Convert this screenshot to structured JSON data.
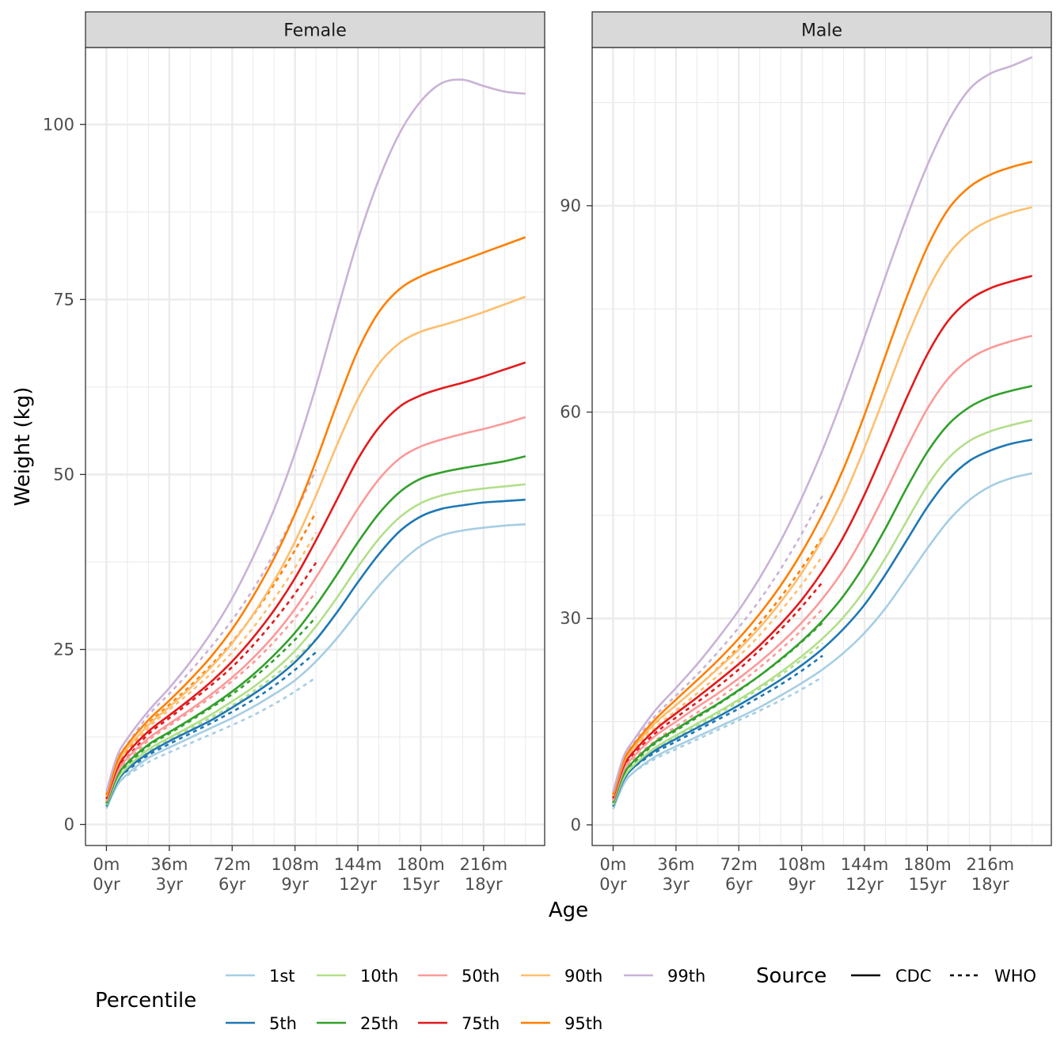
{
  "chart_data": {
    "type": "line",
    "xlabel": "Age",
    "ylabel": "Weight (kg)",
    "x_ticks": [
      {
        "months": 0,
        "l1": "0m",
        "l2": "0yr"
      },
      {
        "months": 36,
        "l1": "36m",
        "l2": "3yr"
      },
      {
        "months": 72,
        "l1": "72m",
        "l2": "6yr"
      },
      {
        "months": 108,
        "l1": "108m",
        "l2": "9yr"
      },
      {
        "months": 144,
        "l1": "144m",
        "l2": "12yr"
      },
      {
        "months": 180,
        "l1": "180m",
        "l2": "15yr"
      },
      {
        "months": 216,
        "l1": "216m",
        "l2": "18yr"
      }
    ],
    "xlim": [
      -12,
      251
    ],
    "grid": true,
    "legend": {
      "placement": "bottom",
      "percentile_title": "Percentile",
      "source_title": "Source",
      "sources": [
        {
          "label": "CDC",
          "dash": "solid"
        },
        {
          "label": "WHO",
          "dash": "dotted"
        }
      ]
    },
    "percentiles": [
      {
        "name": "1st",
        "color": "#a6cee3"
      },
      {
        "name": "5th",
        "color": "#1f78b4"
      },
      {
        "name": "10th",
        "color": "#b2df8a"
      },
      {
        "name": "25th",
        "color": "#33a02c"
      },
      {
        "name": "50th",
        "color": "#fb9a99"
      },
      {
        "name": "75th",
        "color": "#e31a1c"
      },
      {
        "name": "90th",
        "color": "#fdbf6f"
      },
      {
        "name": "95th",
        "color": "#ff7f00"
      },
      {
        "name": "99th",
        "color": "#cab2d6"
      }
    ],
    "facets": [
      {
        "title": "Female",
        "ylim": [
          -3,
          111
        ],
        "y_ticks": [
          0,
          25,
          50,
          75,
          100
        ],
        "cdc": {
          "months": [
            0,
            6,
            12,
            24,
            36,
            48,
            60,
            72,
            84,
            96,
            108,
            120,
            132,
            144,
            156,
            168,
            180,
            192,
            204,
            216,
            228,
            240
          ],
          "series": {
            "1st": [
              2.3,
              5.5,
              7.2,
              9.5,
              11.0,
              12.4,
              13.8,
              15.2,
              16.8,
              18.6,
              20.6,
              23.3,
              26.6,
              30.4,
              34.1,
              37.3,
              39.8,
              41.3,
              42.0,
              42.4,
              42.7,
              42.9
            ],
            "5th": [
              2.6,
              6.0,
              7.9,
              10.2,
              11.9,
              13.4,
              14.9,
              16.7,
              18.6,
              20.7,
              23.2,
              26.4,
              30.3,
              34.6,
              38.6,
              41.9,
              44.0,
              45.1,
              45.6,
              46.0,
              46.2,
              46.4
            ],
            "10th": [
              2.8,
              6.3,
              8.2,
              10.7,
              12.4,
              14.0,
              15.7,
              17.6,
              19.6,
              22.0,
              24.8,
              28.3,
              32.4,
              36.8,
              40.8,
              43.9,
              45.9,
              47.0,
              47.6,
              48.0,
              48.3,
              48.6
            ],
            "25th": [
              3.0,
              6.8,
              8.8,
              11.4,
              13.2,
              15.0,
              16.9,
              19.0,
              21.4,
              24.2,
              27.4,
              31.3,
              35.7,
              40.3,
              44.4,
              47.5,
              49.4,
              50.3,
              50.9,
              51.4,
              51.9,
              52.6
            ],
            "50th": [
              3.3,
              7.3,
              9.5,
              12.3,
              14.4,
              16.4,
              18.6,
              21.0,
              23.8,
              27.0,
              30.8,
              35.3,
              40.2,
              45.1,
              49.3,
              52.3,
              54.0,
              55.0,
              55.8,
              56.5,
              57.3,
              58.2
            ],
            "75th": [
              3.7,
              7.9,
              10.2,
              13.3,
              15.6,
              17.9,
              20.4,
              23.3,
              26.7,
              30.6,
              35.2,
              40.6,
              46.4,
              52.2,
              56.7,
              59.7,
              61.3,
              62.3,
              63.1,
              64.0,
              65.0,
              66.0
            ],
            "90th": [
              4.0,
              8.5,
              10.9,
              14.2,
              16.8,
              19.5,
              22.5,
              25.9,
              30.0,
              34.8,
              40.4,
              47.0,
              54.2,
              60.8,
              65.8,
              68.8,
              70.4,
              71.3,
              72.2,
              73.2,
              74.3,
              75.4
            ],
            "95th": [
              4.2,
              8.9,
              11.4,
              14.9,
              17.7,
              20.7,
              24.0,
              27.9,
              32.6,
              38.0,
              44.4,
              51.9,
              60.1,
              67.7,
              73.2,
              76.5,
              78.3,
              79.5,
              80.6,
              81.7,
              82.8,
              83.9
            ],
            "99th": [
              4.7,
              9.7,
              12.3,
              16.2,
              19.5,
              23.2,
              27.4,
              32.3,
              38.2,
              45.0,
              53.1,
              62.6,
              73.2,
              83.5,
              92.1,
              98.8,
              103.3,
              105.9,
              106.4,
              105.5,
              104.7,
              104.4
            ]
          }
        },
        "who": {
          "months": [
            0,
            6,
            12,
            24,
            36,
            48,
            60,
            72,
            84,
            96,
            108,
            120
          ],
          "series": {
            "1st": [
              2.3,
              5.6,
              7.0,
              8.9,
              10.3,
              11.6,
              12.9,
              14.2,
              15.6,
              17.2,
              19.0,
              21.0
            ],
            "5th": [
              2.6,
              6.2,
              7.7,
              9.9,
              11.5,
              13.0,
              14.5,
              16.1,
              17.8,
              19.8,
              22.1,
              24.6
            ],
            "10th": [
              2.8,
              6.4,
              8.0,
              10.4,
              12.1,
              13.7,
              15.3,
              17.0,
              19.0,
              21.2,
              23.7,
              26.5
            ],
            "25th": [
              3.0,
              6.8,
              8.5,
              11.2,
              13.0,
              14.8,
              16.7,
              18.6,
              20.9,
              23.5,
              26.4,
              29.6
            ],
            "50th": [
              3.2,
              7.3,
              9.0,
              12.0,
              14.1,
              16.1,
              18.2,
              20.5,
              23.1,
              26.1,
              29.5,
              33.2
            ],
            "75th": [
              3.6,
              7.8,
              9.6,
              12.9,
              15.2,
              17.5,
              19.9,
              22.5,
              25.6,
              29.1,
              33.0,
              37.4
            ],
            "90th": [
              3.9,
              8.3,
              10.2,
              13.8,
              16.4,
              18.9,
              21.6,
              24.6,
              28.1,
              32.2,
              36.7,
              41.7
            ],
            "95th": [
              4.1,
              8.6,
              10.6,
              14.4,
              17.1,
              19.8,
              22.8,
              26.1,
              29.9,
              34.3,
              39.2,
              44.6
            ],
            "99th": [
              4.4,
              9.2,
              11.5,
              15.6,
              18.7,
              21.9,
              25.4,
              29.2,
              33.6,
              38.7,
              44.4,
              50.7
            ]
          }
        }
      },
      {
        "title": "Male",
        "ylim": [
          -3,
          113
        ],
        "y_ticks": [
          0,
          30,
          60,
          90
        ],
        "cdc": {
          "months": [
            0,
            6,
            12,
            24,
            36,
            48,
            60,
            72,
            84,
            96,
            108,
            120,
            132,
            144,
            156,
            168,
            180,
            192,
            204,
            216,
            228,
            240
          ],
          "series": {
            "1st": [
              2.3,
              5.9,
              7.7,
              9.9,
              11.4,
              12.8,
              14.2,
              15.6,
              17.1,
              18.8,
              20.6,
              22.6,
              25.0,
              27.9,
              31.5,
              35.8,
              40.2,
              44.2,
              47.2,
              49.2,
              50.4,
              51.1
            ],
            "5th": [
              2.7,
              6.5,
              8.4,
              10.8,
              12.5,
              14.1,
              15.7,
              17.4,
              19.2,
              21.1,
              23.2,
              25.6,
              28.5,
              32.0,
              36.4,
              41.3,
              46.2,
              50.2,
              52.9,
              54.4,
              55.4,
              56.0
            ],
            "10th": [
              2.9,
              6.8,
              8.7,
              11.2,
              13.0,
              14.7,
              16.4,
              18.2,
              20.1,
              22.2,
              24.5,
              27.1,
              30.2,
              34.1,
              38.8,
              44.1,
              49.3,
              53.3,
              55.8,
              57.2,
              58.1,
              58.8
            ],
            "25th": [
              3.2,
              7.3,
              9.3,
              12.0,
              13.9,
              15.8,
              17.6,
              19.6,
              21.7,
              24.1,
              26.7,
              29.7,
              33.3,
              37.8,
              43.1,
              48.9,
              54.2,
              58.2,
              60.7,
              62.2,
              63.1,
              63.8
            ],
            "50th": [
              3.5,
              7.9,
              10.0,
              12.9,
              15.0,
              17.1,
              19.1,
              21.3,
              23.7,
              26.4,
              29.4,
              32.9,
              37.1,
              42.3,
              48.3,
              54.7,
              60.5,
              64.9,
              67.7,
              69.3,
              70.3,
              71.1
            ],
            "75th": [
              3.9,
              8.5,
              10.7,
              13.8,
              16.2,
              18.5,
              20.9,
              23.4,
              26.1,
              29.2,
              32.7,
              36.9,
              41.9,
              48.0,
              54.9,
              62.0,
              68.4,
              73.3,
              76.3,
              78.0,
              79.0,
              79.8
            ],
            "90th": [
              4.2,
              9.0,
              11.3,
              14.8,
              17.4,
              20.0,
              22.7,
              25.5,
              28.7,
              32.4,
              36.6,
              41.6,
              47.6,
              54.8,
              62.7,
              70.6,
              77.6,
              82.9,
              86.1,
              87.9,
              89.0,
              89.8
            ],
            "95th": [
              4.4,
              9.3,
              11.7,
              15.3,
              18.2,
              21.0,
              23.9,
              27.1,
              30.7,
              34.8,
              39.6,
              45.2,
              51.8,
              59.6,
              68.2,
              76.6,
              84.0,
              89.5,
              92.7,
              94.5,
              95.6,
              96.4
            ],
            "99th": [
              4.8,
              9.9,
              12.4,
              16.6,
              19.9,
              23.3,
              27.1,
              31.2,
              35.9,
              41.3,
              47.5,
              54.5,
              62.4,
              70.9,
              79.7,
              88.2,
              95.9,
              102.3,
              106.9,
              109.2,
              110.3,
              111.6
            ]
          }
        },
        "who": {
          "months": [
            0,
            6,
            12,
            24,
            36,
            48,
            60,
            72,
            84,
            96,
            108,
            120
          ],
          "series": {
            "1st": [
              2.5,
              6.1,
              7.7,
              9.6,
              11.0,
              12.4,
              13.8,
              15.2,
              16.6,
              18.1,
              19.7,
              21.5
            ],
            "5th": [
              2.8,
              6.7,
              8.4,
              10.5,
              12.1,
              13.7,
              15.3,
              16.9,
              18.6,
              20.4,
              22.4,
              24.6
            ],
            "10th": [
              3.0,
              7.0,
              8.6,
              11.0,
              12.7,
              14.4,
              16.1,
              17.9,
              19.8,
              21.8,
              24.0,
              26.4
            ],
            "25th": [
              3.2,
              7.4,
              9.1,
              11.8,
              13.7,
              15.6,
              17.5,
              19.5,
              21.7,
              24.0,
              26.6,
              29.4
            ],
            "50th": [
              3.3,
              7.9,
              9.6,
              12.2,
              14.3,
              16.3,
              18.3,
              20.5,
              22.9,
              25.5,
              28.3,
              31.4
            ],
            "75th": [
              3.7,
              8.4,
              10.3,
              13.3,
              15.6,
              17.8,
              20.1,
              22.6,
              25.4,
              28.4,
              31.7,
              35.3
            ],
            "90th": [
              4.0,
              8.9,
              10.9,
              14.1,
              16.6,
              19.1,
              21.7,
              24.5,
              27.6,
              31.1,
              34.9,
              39.1
            ],
            "95th": [
              4.2,
              9.2,
              11.3,
              14.7,
              17.4,
              20.0,
              22.8,
              25.9,
              29.3,
              33.1,
              37.3,
              41.9
            ],
            "99th": [
              4.5,
              9.8,
              12.0,
              15.8,
              18.8,
              21.8,
              25.1,
              28.7,
              32.7,
              37.2,
              42.3,
              47.9
            ]
          }
        }
      }
    ]
  }
}
